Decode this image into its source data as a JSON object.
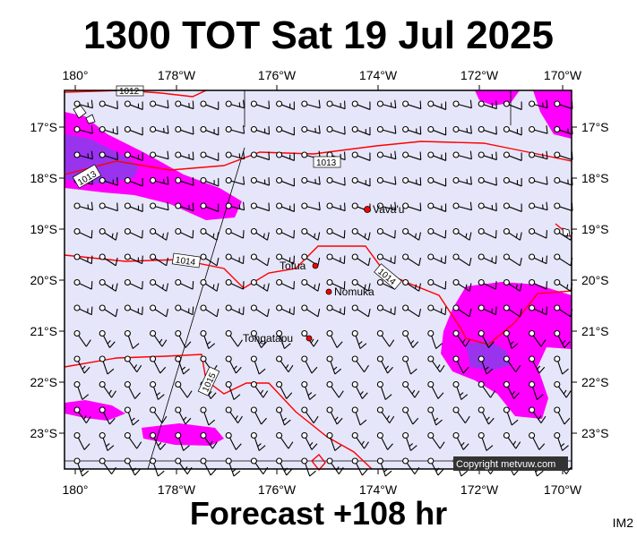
{
  "header": {
    "title": "1300 TOT Sat 19 Jul 2025"
  },
  "footer": {
    "forecast_label": "Forecast +108 hr",
    "code": "IM2"
  },
  "map": {
    "lon_labels": [
      "180°",
      "178°W",
      "176°W",
      "174°W",
      "172°W",
      "170°W"
    ],
    "lat_labels": [
      "17°S",
      "18°S",
      "19°S",
      "20°S",
      "21°S",
      "22°S",
      "23°S"
    ],
    "places": [
      {
        "name": "Vava'u",
        "lon": -174.0,
        "lat": -18.65
      },
      {
        "name": "Tofua",
        "lon": -175.07,
        "lat": -19.72
      },
      {
        "name": "Nomuka",
        "lon": -174.8,
        "lat": -20.25
      },
      {
        "name": "Tongatapu",
        "lon": -175.2,
        "lat": -21.13
      }
    ],
    "isobar_labels": [
      {
        "text": "1012",
        "lon": -178.8,
        "lat": -16.4
      },
      {
        "text": "1013",
        "lon": -174.9,
        "lat": -17.75
      },
      {
        "text": "1013",
        "lon": -179.85,
        "lat": -18.0
      },
      {
        "text": "1014",
        "lon": -178.1,
        "lat": -19.6
      },
      {
        "text": "1014",
        "lon": -173.8,
        "lat": -20.0
      },
      {
        "text": "1015",
        "lon": -176.6,
        "lat": -22.2
      }
    ],
    "copyright": "Copyright metvuw.com",
    "colors": {
      "background": "#e6e6fa",
      "rain_light": "#ff00ff",
      "rain_heavy": "#9933ee",
      "isobar": "#ff0000",
      "place_marker": "#ff0000"
    }
  }
}
